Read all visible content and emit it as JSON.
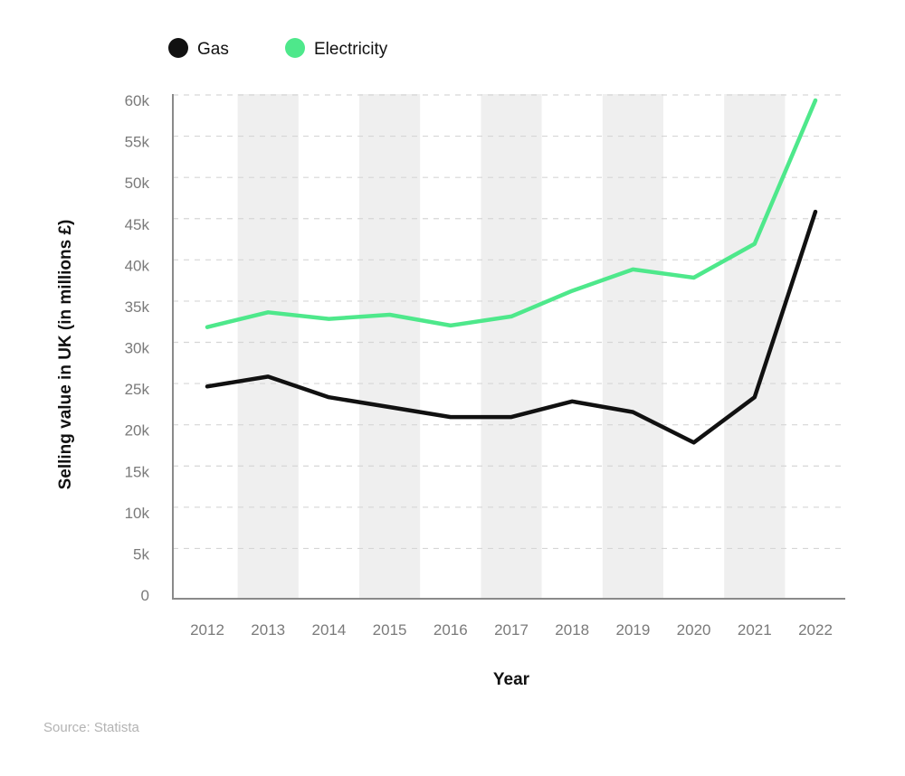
{
  "chart_data": {
    "type": "line",
    "categories": [
      "2012",
      "2013",
      "2014",
      "2015",
      "2016",
      "2017",
      "2018",
      "2019",
      "2020",
      "2021",
      "2022"
    ],
    "series": [
      {
        "name": "Gas",
        "color": "#111111",
        "values": [
          25300,
          26500,
          24000,
          22800,
          21600,
          21600,
          23500,
          22200,
          18500,
          24000,
          46500
        ]
      },
      {
        "name": "Electricity",
        "color": "#4ee88b",
        "values": [
          32500,
          34300,
          33500,
          34000,
          32700,
          33800,
          36900,
          39500,
          38500,
          42600,
          60000
        ]
      }
    ],
    "xlabel": "Year",
    "ylabel": "Selling value in UK (in millions £)",
    "ylim": [
      0,
      60000
    ],
    "yticks": [
      {
        "value": 0,
        "label": "0"
      },
      {
        "value": 5000,
        "label": "5k"
      },
      {
        "value": 10000,
        "label": "10k"
      },
      {
        "value": 15000,
        "label": "15k"
      },
      {
        "value": 20000,
        "label": "20k"
      },
      {
        "value": 25000,
        "label": "25k"
      },
      {
        "value": 30000,
        "label": "30k"
      },
      {
        "value": 35000,
        "label": "35k"
      },
      {
        "value": 40000,
        "label": "40k"
      },
      {
        "value": 45000,
        "label": "45k"
      },
      {
        "value": 50000,
        "label": "50k"
      },
      {
        "value": 55000,
        "label": "55k"
      },
      {
        "value": 60000,
        "label": "60k"
      }
    ],
    "grid": true,
    "legend_position": "top-left",
    "band_color": "#efefef"
  },
  "source": "Source: Statista"
}
